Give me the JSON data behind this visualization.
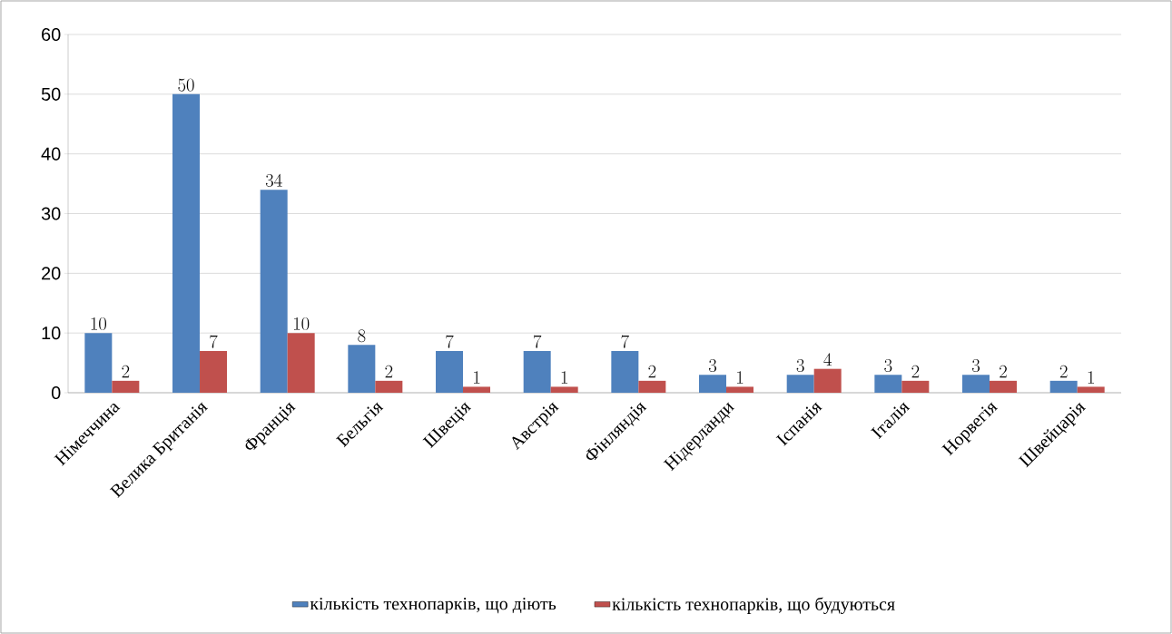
{
  "chart_data": {
    "type": "bar",
    "categories": [
      "Німеччина",
      "Велика Британія",
      "Франція",
      "Бельгія",
      "Швеція",
      "Австрія",
      "Фінляндія",
      "Нідерланди",
      "Іспанія",
      "Італія",
      "Норвегія",
      "Швейцарія"
    ],
    "series": [
      {
        "name": "кількість  технопарків, що діють",
        "color": "#4f81bd",
        "values": [
          10,
          50,
          34,
          8,
          7,
          7,
          7,
          3,
          3,
          3,
          3,
          2
        ]
      },
      {
        "name": "кількість  технопарків, що будуються",
        "color": "#c0504d",
        "values": [
          2,
          7,
          10,
          2,
          1,
          1,
          2,
          1,
          4,
          2,
          2,
          1
        ]
      }
    ],
    "ylim": [
      0,
      60
    ],
    "yticks": [
      0,
      10,
      20,
      30,
      40,
      50,
      60
    ],
    "grid": "y",
    "legend": "bottom",
    "data_labels": true
  }
}
